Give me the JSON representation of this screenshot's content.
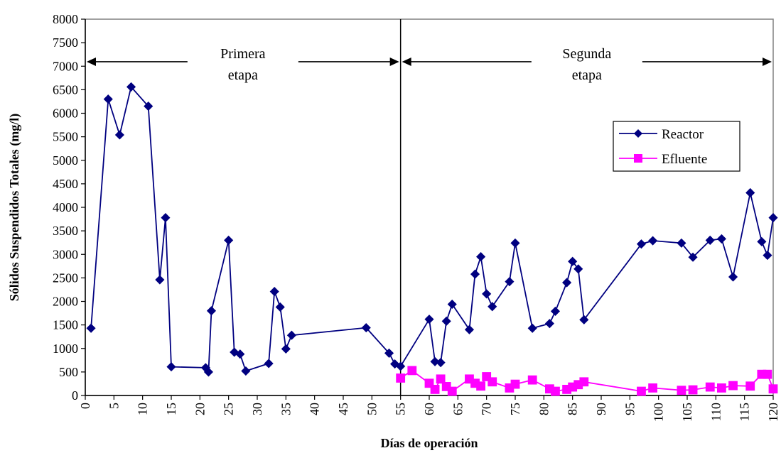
{
  "chart_data": {
    "type": "line",
    "title": "",
    "xlabel": "Días de operación",
    "ylabel": "Sólidos Suspendidos Totales (mg/l)",
    "xlim": [
      0,
      120
    ],
    "ylim": [
      0,
      8000
    ],
    "xticks": [
      0,
      5,
      10,
      15,
      20,
      25,
      30,
      35,
      40,
      45,
      50,
      55,
      60,
      65,
      70,
      75,
      80,
      85,
      90,
      95,
      100,
      105,
      110,
      115,
      120
    ],
    "yticks": [
      0,
      500,
      1000,
      1500,
      2000,
      2500,
      3000,
      3500,
      4000,
      4500,
      5000,
      5500,
      6000,
      6500,
      7000,
      7500,
      8000
    ],
    "grid": false,
    "legend_position": "right",
    "colors": {
      "reactor": "#000080",
      "efluente": "#FF00FF",
      "axis": "#808080"
    },
    "series": [
      {
        "name": "Reactor",
        "marker": "diamond",
        "color": "#000080",
        "x": [
          1,
          4,
          6,
          8,
          11,
          13,
          14,
          15,
          21,
          21.5,
          22,
          25,
          26,
          27,
          28,
          32,
          33,
          34,
          35,
          36,
          49,
          53,
          54,
          55,
          60,
          61,
          62,
          63,
          64,
          67,
          68,
          69,
          70,
          71,
          74,
          75,
          78,
          81,
          82,
          84,
          85,
          86,
          87,
          97,
          99,
          104,
          106,
          109,
          111,
          113,
          116,
          118,
          119,
          120
        ],
        "y": [
          1430,
          6300,
          5540,
          6560,
          6150,
          2460,
          3780,
          610,
          590,
          500,
          1800,
          3300,
          920,
          880,
          520,
          680,
          2210,
          1880,
          990,
          1280,
          1440,
          900,
          670,
          620,
          1620,
          720,
          700,
          1580,
          1940,
          1400,
          2580,
          2950,
          2160,
          1890,
          2420,
          3240,
          1430,
          1530,
          1790,
          2400,
          2850,
          2690,
          1610,
          3220,
          3290,
          3240,
          2940,
          3300,
          3330,
          2520,
          4310,
          3270,
          2980,
          3780
        ]
      },
      {
        "name": "Efluente",
        "marker": "square",
        "color": "#FF00FF",
        "x": [
          55,
          57,
          60,
          61,
          62,
          63,
          64,
          67,
          68,
          69,
          70,
          71,
          74,
          75,
          78,
          81,
          82,
          84,
          85,
          86,
          87,
          97,
          99,
          104,
          106,
          109,
          111,
          113,
          116,
          118,
          119,
          120
        ],
        "y": [
          370,
          530,
          260,
          130,
          350,
          190,
          90,
          350,
          260,
          200,
          400,
          290,
          160,
          240,
          330,
          140,
          90,
          130,
          180,
          230,
          290,
          90,
          160,
          110,
          120,
          180,
          160,
          210,
          200,
          450,
          450,
          140
        ]
      }
    ],
    "annotations": [
      {
        "lines": [
          "Primera",
          "etapa"
        ],
        "x_from": 0,
        "x_to": 55,
        "y": 7050
      },
      {
        "lines": [
          "Segunda",
          "etapa"
        ],
        "x_from": 55,
        "x_to": 120,
        "y": 7050
      }
    ],
    "vertical_line_x": 55
  }
}
